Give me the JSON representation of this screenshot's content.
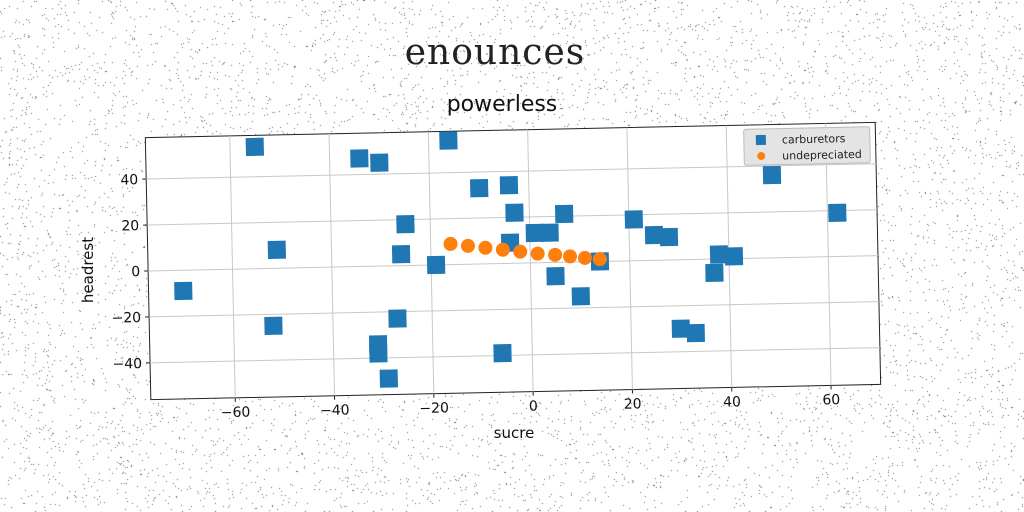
{
  "figure": {
    "suptitle": "enounces"
  },
  "chart_data": {
    "type": "scatter",
    "title": "powerless",
    "xlabel": "sucre",
    "ylabel": "headrest",
    "xlim": [
      -77,
      70
    ],
    "ylim": [
      -56,
      58
    ],
    "xticks": [
      -60,
      -40,
      -20,
      0,
      20,
      40,
      60
    ],
    "yticks": [
      -40,
      -20,
      0,
      20,
      40
    ],
    "grid": true,
    "legend_position": "top-right",
    "series": [
      {
        "name": "carburetors",
        "marker": "square",
        "color": "#1f77b4",
        "points": [
          [
            -55,
            53
          ],
          [
            -16,
            54
          ],
          [
            -34,
            47
          ],
          [
            -30,
            45
          ],
          [
            -10,
            33
          ],
          [
            -4,
            34
          ],
          [
            49,
            36
          ],
          [
            62,
            19
          ],
          [
            -3,
            22
          ],
          [
            7,
            21
          ],
          [
            -25,
            18
          ],
          [
            21,
            18
          ],
          [
            -51,
            8
          ],
          [
            -4,
            9
          ],
          [
            1,
            13
          ],
          [
            4,
            13
          ],
          [
            25,
            11
          ],
          [
            28,
            10
          ],
          [
            -26,
            5
          ],
          [
            -19,
            0
          ],
          [
            14,
            0
          ],
          [
            38,
            2
          ],
          [
            41,
            1
          ],
          [
            37,
            -6
          ],
          [
            5,
            -6
          ],
          [
            -70,
            -9
          ],
          [
            10,
            -15
          ],
          [
            -27,
            -23
          ],
          [
            -52,
            -25
          ],
          [
            -31,
            -34
          ],
          [
            -31,
            -38
          ],
          [
            -6,
            -39
          ],
          [
            30,
            -30
          ],
          [
            33,
            -32
          ],
          [
            -29,
            -49
          ]
        ]
      },
      {
        "name": "undepreciated",
        "marker": "circle",
        "color": "#ff7f0e",
        "points": [
          [
            -16,
            9
          ],
          [
            -12.5,
            8
          ],
          [
            -9,
            7
          ],
          [
            -5.5,
            6
          ],
          [
            -2,
            5
          ],
          [
            1.5,
            4
          ],
          [
            5,
            3.3
          ],
          [
            8,
            2.5
          ],
          [
            11,
            1.7
          ],
          [
            14,
            1
          ]
        ]
      }
    ]
  }
}
